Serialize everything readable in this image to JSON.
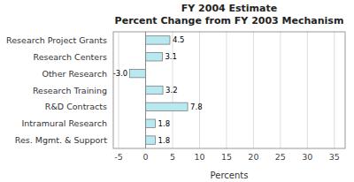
{
  "chart_data": {
    "type": "bar",
    "orientation": "horizontal",
    "title": "FY 2004 Estimate",
    "subtitle": "Percent Change from FY 2003 Mechanism",
    "categories": [
      "Research Project Grants",
      "Research Centers",
      "Other Research",
      "Research Training",
      "R&D Contracts",
      "Intramural Research",
      "Res. Mgmt. & Support"
    ],
    "values": [
      4.5,
      3.1,
      -3.0,
      3.2,
      7.8,
      1.8,
      1.8
    ],
    "value_labels": [
      "4.5",
      "3.1",
      "-3.0",
      "3.2",
      "7.8",
      "1.8",
      "1.8"
    ],
    "color": "#b8e8f0",
    "xlabel": "Percents",
    "xlim": [
      -6,
      37
    ],
    "xticks": [
      -5,
      0,
      5,
      10,
      15,
      20,
      25,
      30,
      35
    ],
    "grid": true,
    "data_labels": true
  }
}
